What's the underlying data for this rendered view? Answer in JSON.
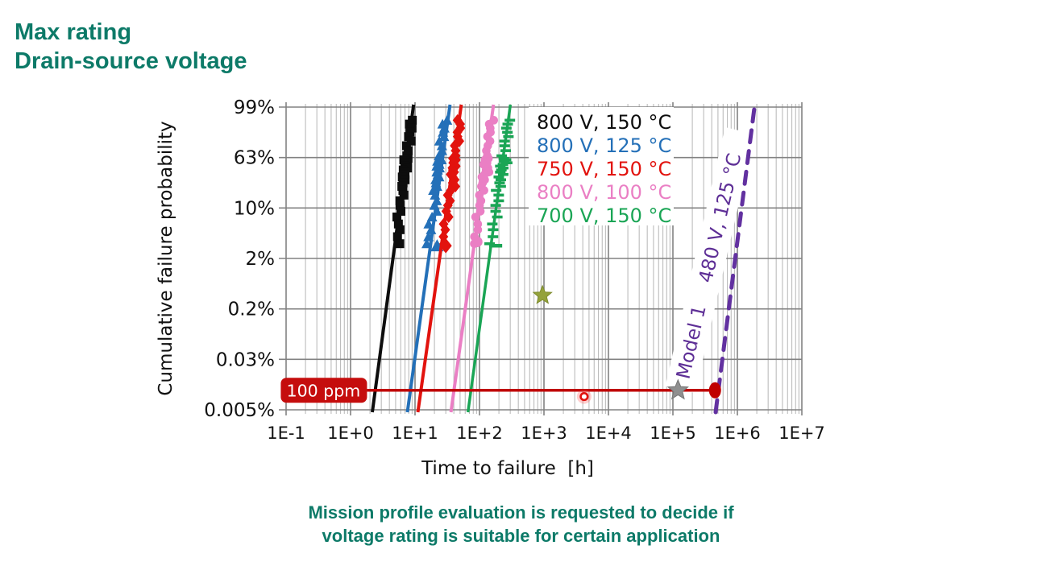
{
  "page": {
    "title_line1": "Max rating",
    "title_line2": "Drain-source voltage",
    "caption_line1": "Mission profile evaluation is requested to decide if",
    "caption_line2": "voltage rating is suitable for certain application",
    "accent_color": "#0d7a68"
  },
  "chart_data": {
    "type": "line",
    "subtype": "weibull-probability-plot",
    "title": "",
    "xlabel": "Time to failure  [h]",
    "ylabel": "Cumulative failure probability",
    "x_scale": "log",
    "x_range_hours": [
      0.1,
      10000000
    ],
    "x_tick_labels": [
      "1E-1",
      "1E+0",
      "1E+1",
      "1E+2",
      "1E+3",
      "1E+4",
      "1E+5",
      "1E+6",
      "1E+7"
    ],
    "y_scale": "probability",
    "y_ticks_percent": [
      99,
      63,
      10,
      2,
      0.2,
      0.03,
      0.005
    ],
    "y_tick_labels": [
      "99%",
      "63%",
      "10%",
      "2%",
      "0.2%",
      "0.03%",
      "0.005%"
    ],
    "grid": true,
    "grid_major_color": "#828282",
    "grid_minor_color": "#b5b5b5",
    "legend_position": "top-inside",
    "series": [
      {
        "label": "800 V, 150 °C",
        "color": "#0d0d0d",
        "marker": "square",
        "marker_dx_px": 0,
        "t_hours_at_0_005pct": 2.2,
        "t_hours_at_99pct": 9.4,
        "outlier_point": null
      },
      {
        "label": "800 V, 125 °C",
        "color": "#2470b8",
        "marker": "triangle",
        "marker_dx_px": -4,
        "t_hours_at_0_005pct": 7.7,
        "t_hours_at_99pct": 34.5,
        "outlier_point": [
          22,
          3.0
        ]
      },
      {
        "label": "750 V, 150 °C",
        "color": "#e2130e",
        "marker": "diamond",
        "marker_dx_px": 1,
        "t_hours_at_0_005pct": 11.2,
        "t_hours_at_99pct": 51.6,
        "outlier_point": [
          30,
          3.0
        ]
      },
      {
        "label": "800 V, 100 °C",
        "color": "#ea7fc4",
        "marker": "circle",
        "marker_dx_px": 0,
        "t_hours_at_0_005pct": 36.5,
        "t_hours_at_99pct": 163,
        "outlier_point": [
          92,
          3.4
        ]
      },
      {
        "label": "700 V, 150 °C",
        "color": "#1aa555",
        "marker": "tick",
        "marker_dx_px": 0,
        "t_hours_at_0_005pct": 67,
        "t_hours_at_99pct": 298,
        "outlier_point": [
          178,
          3.0
        ]
      }
    ],
    "marker_points_p_percent": [
      88,
      85,
      82,
      79,
      76,
      73,
      70,
      67,
      64,
      61,
      58,
      55,
      52,
      49,
      46,
      43,
      40,
      37,
      34,
      31,
      28,
      25,
      22,
      19,
      16,
      13,
      11,
      9,
      7.5,
      6,
      5,
      4,
      3.2
    ],
    "marker_x_jitter_px": [
      1,
      -2,
      2,
      0,
      -1,
      3,
      -2,
      1,
      0,
      2,
      -3,
      1,
      2,
      -1,
      0,
      3,
      -2,
      0,
      1,
      -2,
      2,
      0,
      -1,
      1,
      3,
      -1,
      0,
      2,
      -2,
      1,
      4,
      2,
      6
    ],
    "model_line": {
      "label_model": "Model 1",
      "label_condition": "480 V, 125 °C",
      "color": "#6231a0",
      "style": "dashed",
      "t_hours_at_0_005pct": 460000,
      "t_hours_at_99pct": 1940000
    },
    "threshold": {
      "label": "100 ppm",
      "p_percent": 0.01,
      "t_start_hours": 1.8,
      "t_end_hours": 450000,
      "line_color": "#bf0000",
      "box_color": "#c50d0d",
      "end_marker": {
        "shape": "ellipse",
        "t_hours": 450000,
        "color": "#c00000"
      },
      "mid_marker": {
        "shape": "star",
        "t_hours": 120000,
        "color": "#8f8f8f"
      },
      "below_point": {
        "t_hours": 4200,
        "p_percent": 0.008,
        "color": "#e0120e"
      }
    },
    "annotation_star": {
      "t_hours": 950,
      "p_percent": 0.37,
      "color": "#94a23c"
    }
  }
}
